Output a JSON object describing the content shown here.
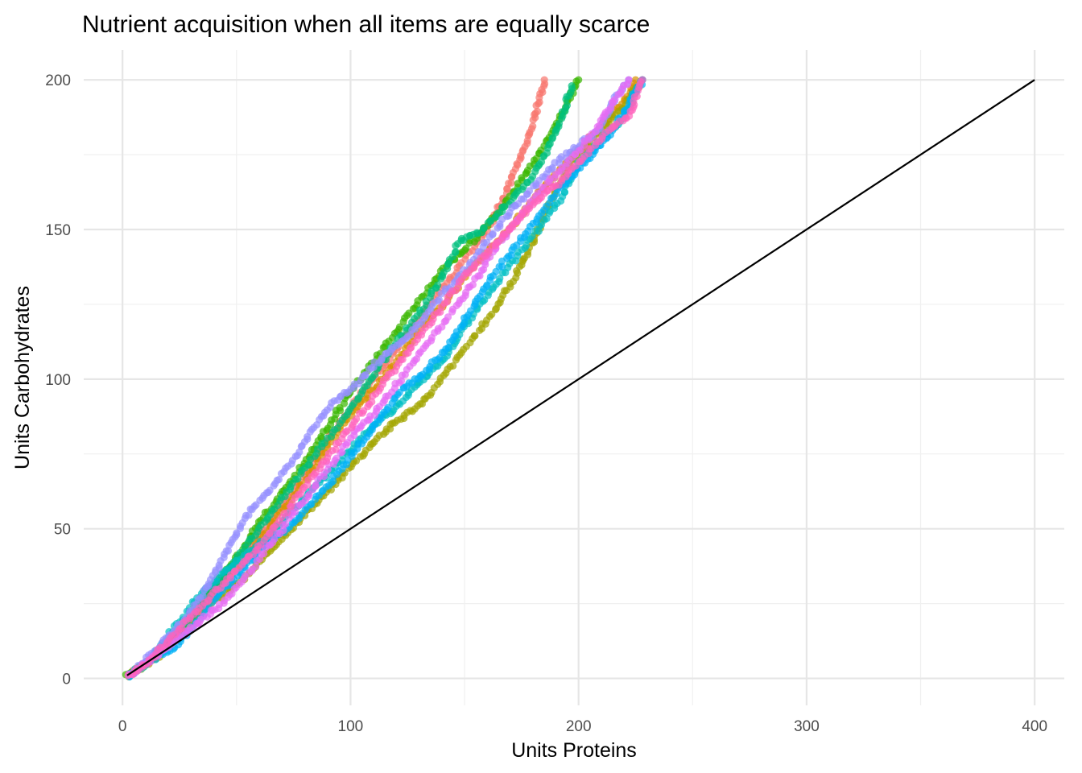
{
  "chart_data": {
    "type": "scatter",
    "title": "Nutrient acquisition when all items are equally scarce",
    "xlabel": "Units Proteins",
    "ylabel": "Units Carbohydrates",
    "xlim": [
      -17,
      413
    ],
    "ylim": [
      -9,
      210
    ],
    "x_ticks": [
      0,
      100,
      200,
      300,
      400
    ],
    "y_ticks": [
      0,
      50,
      100,
      150,
      200
    ],
    "x_tick_labels": [
      "0",
      "100",
      "200",
      "300",
      "400"
    ],
    "y_tick_labels": [
      "0",
      "50",
      "100",
      "150",
      "200"
    ],
    "grid": true,
    "legend": "none",
    "reference_line": {
      "x": [
        2,
        400
      ],
      "y": [
        1,
        200
      ],
      "color": "#000000"
    },
    "series": [
      {
        "color": "#F8766D",
        "points": [
          [
            3,
            1
          ],
          [
            10,
            5
          ],
          [
            20,
            12
          ],
          [
            30,
            20
          ],
          [
            40,
            30
          ],
          [
            50,
            38
          ],
          [
            60,
            48
          ],
          [
            70,
            58
          ],
          [
            80,
            68
          ],
          [
            90,
            80
          ],
          [
            100,
            90
          ],
          [
            110,
            100
          ],
          [
            120,
            110
          ],
          [
            130,
            120
          ],
          [
            140,
            130
          ],
          [
            150,
            140
          ],
          [
            160,
            150
          ],
          [
            168,
            162
          ],
          [
            175,
            175
          ],
          [
            180,
            185
          ],
          [
            185,
            200
          ]
        ]
      },
      {
        "color": "#D89000",
        "points": [
          [
            3,
            1
          ],
          [
            12,
            6
          ],
          [
            22,
            14
          ],
          [
            32,
            22
          ],
          [
            42,
            30
          ],
          [
            52,
            38
          ],
          [
            62,
            48
          ],
          [
            72,
            58
          ],
          [
            82,
            68
          ],
          [
            92,
            80
          ],
          [
            102,
            90
          ],
          [
            112,
            98
          ],
          [
            122,
            108
          ],
          [
            132,
            118
          ],
          [
            142,
            126
          ],
          [
            152,
            136
          ],
          [
            162,
            144
          ],
          [
            172,
            152
          ],
          [
            182,
            162
          ],
          [
            192,
            170
          ],
          [
            202,
            178
          ],
          [
            212,
            186
          ],
          [
            220,
            193
          ],
          [
            225,
            200
          ]
        ]
      },
      {
        "color": "#A3A500",
        "points": [
          [
            3,
            1
          ],
          [
            14,
            6
          ],
          [
            24,
            14
          ],
          [
            34,
            22
          ],
          [
            44,
            28
          ],
          [
            54,
            34
          ],
          [
            64,
            42
          ],
          [
            74,
            50
          ],
          [
            84,
            58
          ],
          [
            94,
            66
          ],
          [
            104,
            74
          ],
          [
            114,
            82
          ],
          [
            124,
            88
          ],
          [
            134,
            94
          ],
          [
            144,
            104
          ],
          [
            154,
            114
          ],
          [
            164,
            124
          ],
          [
            172,
            134
          ],
          [
            180,
            146
          ],
          [
            188,
            160
          ],
          [
            196,
            172
          ],
          [
            206,
            180
          ],
          [
            216,
            188
          ],
          [
            228,
            200
          ]
        ]
      },
      {
        "color": "#39B600",
        "points": [
          [
            2,
            1
          ],
          [
            10,
            5
          ],
          [
            20,
            12
          ],
          [
            30,
            22
          ],
          [
            40,
            30
          ],
          [
            50,
            40
          ],
          [
            60,
            52
          ],
          [
            70,
            62
          ],
          [
            80,
            72
          ],
          [
            90,
            84
          ],
          [
            100,
            96
          ],
          [
            110,
            106
          ],
          [
            120,
            116
          ],
          [
            130,
            126
          ],
          [
            140,
            136
          ],
          [
            148,
            142
          ],
          [
            156,
            148
          ],
          [
            164,
            155
          ],
          [
            172,
            163
          ],
          [
            180,
            172
          ],
          [
            188,
            182
          ],
          [
            196,
            194
          ],
          [
            200,
            200
          ]
        ]
      },
      {
        "color": "#00BF7D",
        "points": [
          [
            3,
            1
          ],
          [
            12,
            6
          ],
          [
            22,
            14
          ],
          [
            32,
            22
          ],
          [
            42,
            32
          ],
          [
            52,
            42
          ],
          [
            62,
            52
          ],
          [
            72,
            62
          ],
          [
            82,
            72
          ],
          [
            92,
            82
          ],
          [
            102,
            92
          ],
          [
            112,
            104
          ],
          [
            122,
            114
          ],
          [
            132,
            124
          ],
          [
            140,
            134
          ],
          [
            148,
            146
          ],
          [
            158,
            150
          ],
          [
            168,
            158
          ],
          [
            178,
            166
          ],
          [
            186,
            176
          ],
          [
            192,
            186
          ],
          [
            197,
            198
          ]
        ]
      },
      {
        "color": "#00BFC4",
        "points": [
          [
            3,
            1
          ],
          [
            12,
            6
          ],
          [
            22,
            16
          ],
          [
            32,
            26
          ],
          [
            42,
            34
          ],
          [
            52,
            40
          ],
          [
            62,
            46
          ],
          [
            72,
            54
          ],
          [
            82,
            62
          ],
          [
            92,
            70
          ],
          [
            102,
            78
          ],
          [
            112,
            86
          ],
          [
            122,
            92
          ],
          [
            132,
            100
          ],
          [
            142,
            108
          ],
          [
            152,
            120
          ],
          [
            162,
            130
          ],
          [
            172,
            140
          ],
          [
            182,
            150
          ],
          [
            192,
            160
          ],
          [
            200,
            172
          ],
          [
            210,
            180
          ],
          [
            220,
            188
          ],
          [
            228,
            200
          ]
        ]
      },
      {
        "color": "#00B0F6",
        "points": [
          [
            3,
            1
          ],
          [
            12,
            6
          ],
          [
            22,
            10
          ],
          [
            32,
            18
          ],
          [
            42,
            28
          ],
          [
            52,
            36
          ],
          [
            62,
            44
          ],
          [
            72,
            50
          ],
          [
            82,
            58
          ],
          [
            92,
            66
          ],
          [
            102,
            76
          ],
          [
            112,
            86
          ],
          [
            122,
            96
          ],
          [
            132,
            102
          ],
          [
            142,
            110
          ],
          [
            152,
            122
          ],
          [
            162,
            134
          ],
          [
            172,
            144
          ],
          [
            182,
            154
          ],
          [
            192,
            164
          ],
          [
            202,
            172
          ],
          [
            212,
            180
          ],
          [
            222,
            192
          ],
          [
            228,
            200
          ]
        ]
      },
      {
        "color": "#9590FF",
        "points": [
          [
            3,
            1
          ],
          [
            10,
            6
          ],
          [
            20,
            14
          ],
          [
            30,
            22
          ],
          [
            40,
            34
          ],
          [
            48,
            46
          ],
          [
            56,
            56
          ],
          [
            66,
            64
          ],
          [
            76,
            74
          ],
          [
            84,
            84
          ],
          [
            92,
            92
          ],
          [
            102,
            98
          ],
          [
            112,
            106
          ],
          [
            122,
            112
          ],
          [
            132,
            120
          ],
          [
            140,
            128
          ],
          [
            150,
            136
          ],
          [
            160,
            146
          ],
          [
            170,
            156
          ],
          [
            180,
            164
          ],
          [
            190,
            172
          ],
          [
            200,
            178
          ],
          [
            210,
            184
          ],
          [
            216,
            194
          ],
          [
            222,
            200
          ]
        ]
      },
      {
        "color": "#E76BF3",
        "points": [
          [
            3,
            1
          ],
          [
            12,
            6
          ],
          [
            22,
            12
          ],
          [
            32,
            18
          ],
          [
            42,
            24
          ],
          [
            52,
            32
          ],
          [
            62,
            42
          ],
          [
            72,
            52
          ],
          [
            82,
            62
          ],
          [
            92,
            72
          ],
          [
            102,
            82
          ],
          [
            112,
            90
          ],
          [
            122,
            100
          ],
          [
            132,
            110
          ],
          [
            142,
            120
          ],
          [
            152,
            130
          ],
          [
            162,
            142
          ],
          [
            172,
            152
          ],
          [
            182,
            162
          ],
          [
            192,
            170
          ],
          [
            202,
            178
          ],
          [
            210,
            186
          ],
          [
            216,
            194
          ],
          [
            222,
            200
          ]
        ]
      },
      {
        "color": "#FF62BC",
        "points": [
          [
            3,
            1
          ],
          [
            12,
            6
          ],
          [
            22,
            14
          ],
          [
            32,
            22
          ],
          [
            42,
            30
          ],
          [
            52,
            38
          ],
          [
            62,
            46
          ],
          [
            72,
            56
          ],
          [
            82,
            66
          ],
          [
            92,
            76
          ],
          [
            102,
            86
          ],
          [
            112,
            96
          ],
          [
            122,
            106
          ],
          [
            132,
            116
          ],
          [
            142,
            126
          ],
          [
            152,
            136
          ],
          [
            162,
            144
          ],
          [
            172,
            152
          ],
          [
            182,
            160
          ],
          [
            192,
            166
          ],
          [
            202,
            174
          ],
          [
            212,
            182
          ],
          [
            222,
            188
          ],
          [
            228,
            200
          ]
        ]
      }
    ]
  }
}
